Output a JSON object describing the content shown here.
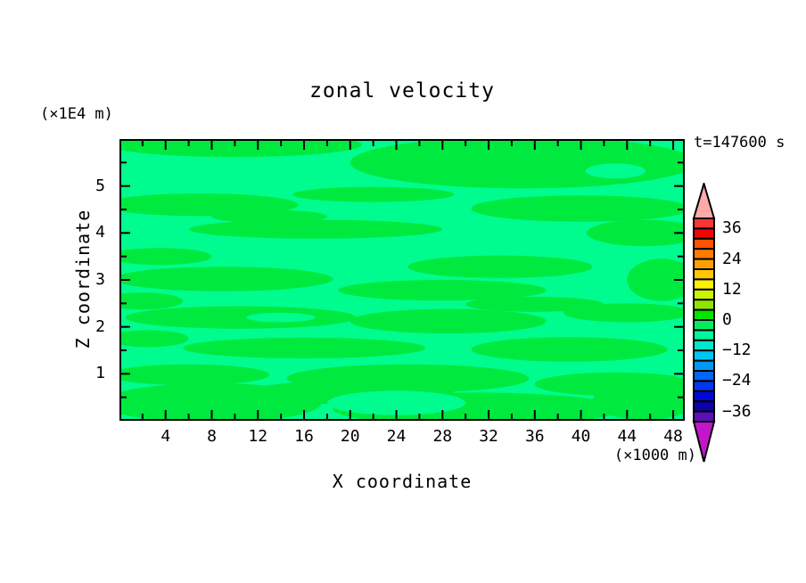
{
  "chart_data": {
    "type": "heatmap",
    "variant": "filled-contour",
    "title": "zonal velocity",
    "time_label": "t=147600 s",
    "xlabel": "X coordinate",
    "ylabel": "Z coordinate",
    "x_unit": "(×1000 m)",
    "y_unit": "(×1E4 m)",
    "xlim": [
      0,
      49
    ],
    "ylim": [
      0,
      6
    ],
    "grid": false,
    "x_major_ticks": [
      4,
      8,
      12,
      16,
      20,
      24,
      28,
      32,
      36,
      40,
      44,
      48
    ],
    "x_minor_ticks": [
      2,
      6,
      10,
      14,
      18,
      22,
      26,
      30,
      34,
      38,
      42,
      46
    ],
    "y_major_ticks": [
      1,
      2,
      3,
      4,
      5
    ],
    "y_minor_ticks": [
      0.5,
      1.5,
      2.5,
      3.5,
      4.5,
      5.5
    ],
    "field_levels": {
      "background": {
        "range": [
          -4,
          0
        ],
        "color": "#00fb8e"
      },
      "streaks": {
        "range": [
          0,
          4
        ],
        "color": "#00e93e"
      }
    },
    "streaks": [
      [
        10,
        5.88,
        11,
        0.26
      ],
      [
        35,
        5.5,
        15,
        0.55
      ],
      [
        22,
        4.82,
        7,
        0.16
      ],
      [
        7,
        4.6,
        8.5,
        0.24
      ],
      [
        40,
        4.52,
        9.5,
        0.28
      ],
      [
        13,
        4.35,
        5,
        0.14
      ],
      [
        17,
        4.08,
        11,
        0.2
      ],
      [
        45.5,
        4.0,
        5,
        0.28
      ],
      [
        3.5,
        3.5,
        4.5,
        0.18
      ],
      [
        33,
        3.28,
        8,
        0.24
      ],
      [
        9,
        3.02,
        9.5,
        0.26
      ],
      [
        28,
        2.78,
        9,
        0.22
      ],
      [
        47,
        3.0,
        3,
        0.45
      ],
      [
        2,
        2.55,
        3.5,
        0.18
      ],
      [
        36,
        2.48,
        6,
        0.16
      ],
      [
        10.5,
        2.2,
        10,
        0.24
      ],
      [
        28.5,
        2.12,
        8.5,
        0.26
      ],
      [
        44,
        2.3,
        5.5,
        0.2
      ],
      [
        16,
        1.55,
        10.5,
        0.22
      ],
      [
        39,
        1.52,
        8.5,
        0.26
      ],
      [
        2.5,
        1.75,
        3.5,
        0.18
      ],
      [
        6,
        0.98,
        7,
        0.22
      ],
      [
        25,
        0.9,
        10.5,
        0.3
      ],
      [
        43,
        0.78,
        7,
        0.25
      ],
      [
        20,
        0.6,
        9,
        0.25
      ],
      [
        8,
        0.38,
        9.5,
        0.42
      ],
      [
        31,
        0.25,
        12.5,
        0.35
      ],
      [
        45.5,
        0.42,
        4.5,
        0.4
      ]
    ],
    "holes": [
      [
        43,
        5.32,
        2.6,
        0.16
      ],
      [
        24,
        0.38,
        6,
        0.26
      ],
      [
        14,
        2.2,
        3,
        0.1
      ]
    ],
    "colorbar": {
      "position": "right",
      "value_min": -40,
      "value_max": 40,
      "interval": 4,
      "labels": [
        36,
        24,
        12,
        0,
        -12,
        -24,
        -36
      ],
      "segment_colors": [
        "#f93636",
        "#ee0505",
        "#ff5200",
        "#ff7b00",
        "#ffa000",
        "#ffc800",
        "#fdf200",
        "#c9f500",
        "#8fe600",
        "#00e400",
        "#00ee60",
        "#00f79e",
        "#00e7cd",
        "#00c6f2",
        "#0099f8",
        "#0066fa",
        "#0038f0",
        "#0008d8",
        "#1000a8",
        "#5a10b4"
      ],
      "over_arrow_color": "#ffaaaa",
      "under_arrow_color": "#c316c9"
    }
  }
}
